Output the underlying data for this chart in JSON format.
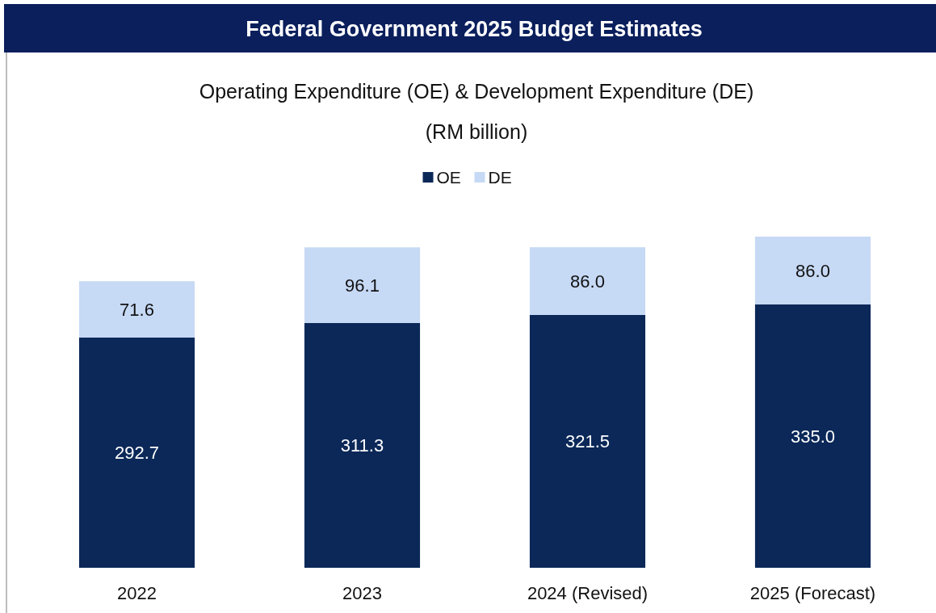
{
  "chart_data": {
    "type": "bar",
    "title": "Federal Government 2025 Budget Estimates",
    "subtitle": "Operating Expenditure (OE) & Development Expenditure (DE)\n(RM billion)",
    "categories": [
      "2022",
      "2023",
      "2024 (Revised)",
      "2025 (Forecast)"
    ],
    "stacked": true,
    "legend": "top",
    "series": [
      {
        "name": "OE",
        "color": "#0b2858",
        "values": [
          292.7,
          311.3,
          321.5,
          335
        ],
        "value_labels": [
          "292.7",
          "311.3",
          "321.5",
          "335.0"
        ]
      },
      {
        "name": "DE",
        "color": "#c6d9f5",
        "values": [
          71.6,
          96.1,
          86,
          86
        ],
        "value_labels": [
          "71.6",
          "96.1",
          "86.0",
          "86.0"
        ]
      }
    ]
  }
}
